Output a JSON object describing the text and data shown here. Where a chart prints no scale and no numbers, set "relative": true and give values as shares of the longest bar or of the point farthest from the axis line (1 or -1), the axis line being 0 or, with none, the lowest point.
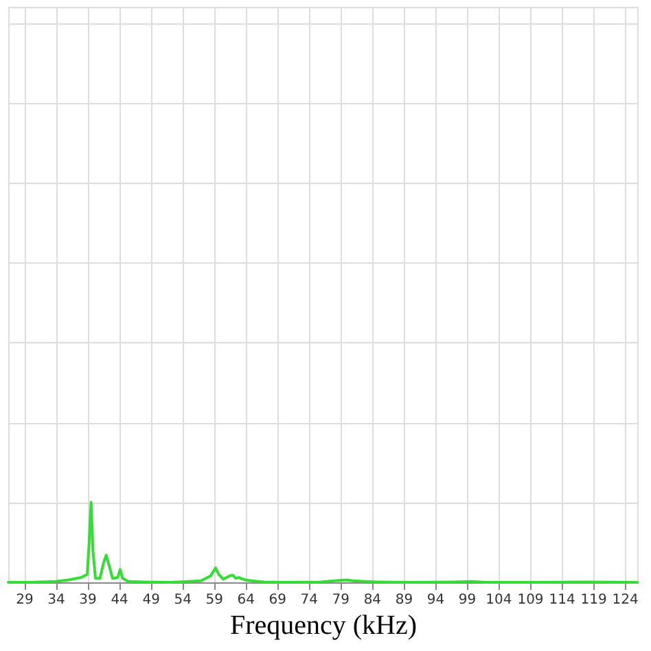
{
  "chart_data": {
    "type": "line",
    "xlabel": "Frequency (kHz)",
    "relative": true,
    "grid": true,
    "tick_labels": "x",
    "marker": "none",
    "line_style": "solid",
    "xlim": [
      26.5,
      126
    ],
    "xticks": [
      29,
      34,
      39,
      44,
      49,
      54,
      59,
      64,
      69,
      74,
      79,
      84,
      89,
      94,
      99,
      104,
      109,
      114,
      119,
      124
    ],
    "x": [
      26.5,
      30,
      34,
      36,
      38,
      39,
      39.3,
      39.6,
      39.9,
      40.3,
      41,
      41.6,
      42,
      42.5,
      43,
      43.8,
      44.2,
      44.6,
      45.5,
      48,
      52,
      55,
      57,
      58.5,
      59.3,
      59.8,
      60.5,
      61.5,
      62,
      62.5,
      63,
      64,
      65,
      66,
      67,
      70,
      76,
      78,
      80,
      81,
      83,
      85,
      90,
      97,
      100,
      102,
      110,
      118,
      126
    ],
    "series": [
      {
        "color": "#33dd33",
        "values": [
          0,
          0,
          0.01,
          0.03,
          0.06,
          0.1,
          0.5,
          1,
          0.4,
          0.05,
          0.05,
          0.25,
          0.34,
          0.2,
          0.05,
          0.06,
          0.16,
          0.05,
          0.01,
          0.005,
          0,
          0.01,
          0.02,
          0.08,
          0.18,
          0.1,
          0.04,
          0.08,
          0.09,
          0.05,
          0.06,
          0.03,
          0.02,
          0.01,
          0.005,
          0,
          0.005,
          0.02,
          0.03,
          0.02,
          0.01,
          0.005,
          0,
          0.005,
          0.01,
          0,
          0,
          0.005,
          0
        ]
      }
    ]
  }
}
